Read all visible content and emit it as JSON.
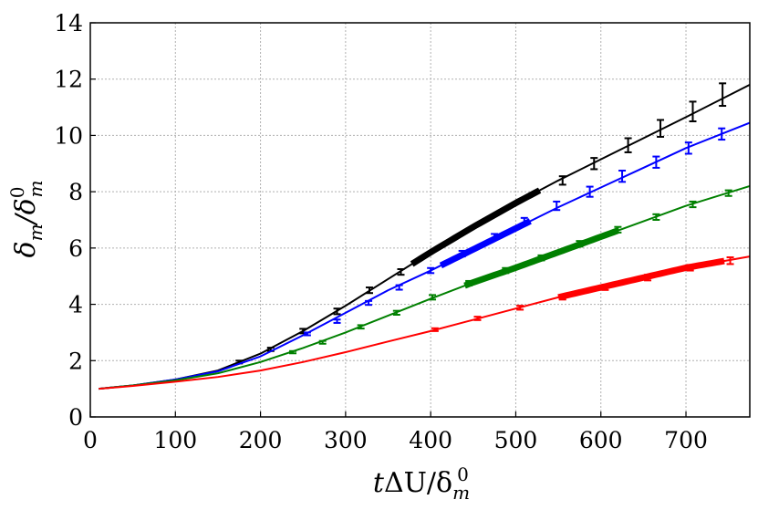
{
  "chart_data": {
    "type": "line",
    "title": "",
    "xlabel_parts": {
      "t": "t",
      "delta": "ΔU/δ",
      "sub": "m",
      "sup": "0"
    },
    "ylabel_parts": {
      "num": "δ",
      "num_sub": "m",
      "slash": "/δ",
      "den_sup": "0",
      "den_sub": "m"
    },
    "xlim": [
      0,
      775
    ],
    "ylim": [
      0,
      14
    ],
    "xticks": [
      0,
      100,
      200,
      300,
      400,
      500,
      600,
      700
    ],
    "yticks": [
      0,
      2,
      4,
      6,
      8,
      10,
      12,
      14
    ],
    "grid": true,
    "legend": "none",
    "series": [
      {
        "color": "#000000",
        "x": [
          10,
          50,
          100,
          150,
          200,
          250,
          300,
          350,
          400,
          450,
          500,
          550,
          600,
          650,
          700,
          775
        ],
        "y": [
          1.0,
          1.12,
          1.33,
          1.65,
          2.25,
          3.05,
          3.95,
          4.9,
          5.85,
          6.75,
          7.6,
          8.4,
          9.15,
          9.9,
          10.65,
          11.8
        ],
        "errorbars": [
          {
            "x": 175,
            "y": 1.95,
            "err": 0.05
          },
          {
            "x": 212,
            "y": 2.4,
            "err": 0.06
          },
          {
            "x": 250,
            "y": 3.05,
            "err": 0.08
          },
          {
            "x": 290,
            "y": 3.75,
            "err": 0.1
          },
          {
            "x": 328,
            "y": 4.5,
            "err": 0.1
          },
          {
            "x": 365,
            "y": 5.15,
            "err": 0.1
          },
          {
            "x": 555,
            "y": 8.4,
            "err": 0.15
          },
          {
            "x": 592,
            "y": 9.0,
            "err": 0.2
          },
          {
            "x": 632,
            "y": 9.65,
            "err": 0.25
          },
          {
            "x": 670,
            "y": 10.25,
            "err": 0.3
          },
          {
            "x": 708,
            "y": 10.85,
            "err": 0.35
          },
          {
            "x": 743,
            "y": 11.45,
            "err": 0.4
          }
        ],
        "bold_x": [
          378,
          530
        ]
      },
      {
        "color": "#0000ff",
        "x": [
          10,
          50,
          100,
          150,
          200,
          250,
          300,
          350,
          400,
          450,
          500,
          550,
          600,
          650,
          700,
          775
        ],
        "y": [
          1.0,
          1.12,
          1.33,
          1.62,
          2.15,
          2.9,
          3.7,
          4.5,
          5.2,
          5.95,
          6.7,
          7.45,
          8.15,
          8.85,
          9.55,
          10.45
        ],
        "errorbars": [
          {
            "x": 255,
            "y": 2.95,
            "err": 0.05
          },
          {
            "x": 290,
            "y": 3.4,
            "err": 0.06
          },
          {
            "x": 327,
            "y": 4.05,
            "err": 0.07
          },
          {
            "x": 363,
            "y": 4.6,
            "err": 0.08
          },
          {
            "x": 400,
            "y": 5.2,
            "err": 0.09
          },
          {
            "x": 437,
            "y": 5.8,
            "err": 0.1
          },
          {
            "x": 475,
            "y": 6.4,
            "err": 0.1
          },
          {
            "x": 510,
            "y": 6.95,
            "err": 0.12
          },
          {
            "x": 548,
            "y": 7.5,
            "err": 0.15
          },
          {
            "x": 587,
            "y": 8.0,
            "err": 0.18
          },
          {
            "x": 625,
            "y": 8.55,
            "err": 0.2
          },
          {
            "x": 665,
            "y": 9.05,
            "err": 0.2
          },
          {
            "x": 703,
            "y": 9.55,
            "err": 0.2
          },
          {
            "x": 742,
            "y": 10.05,
            "err": 0.2
          }
        ],
        "bold_x": [
          412,
          520
        ]
      },
      {
        "color": "#008000",
        "x": [
          10,
          50,
          100,
          150,
          200,
          250,
          300,
          350,
          400,
          450,
          500,
          550,
          600,
          650,
          700,
          775
        ],
        "y": [
          1.0,
          1.12,
          1.3,
          1.55,
          1.95,
          2.45,
          3.0,
          3.6,
          4.2,
          4.78,
          5.3,
          5.85,
          6.4,
          6.95,
          7.5,
          8.2
        ],
        "errorbars": [
          {
            "x": 238,
            "y": 2.3,
            "err": 0.04
          },
          {
            "x": 273,
            "y": 2.65,
            "err": 0.05
          },
          {
            "x": 318,
            "y": 3.2,
            "err": 0.06
          },
          {
            "x": 360,
            "y": 3.7,
            "err": 0.07
          },
          {
            "x": 402,
            "y": 4.25,
            "err": 0.08
          },
          {
            "x": 445,
            "y": 4.75,
            "err": 0.08
          },
          {
            "x": 488,
            "y": 5.2,
            "err": 0.09
          },
          {
            "x": 530,
            "y": 5.65,
            "err": 0.09
          },
          {
            "x": 575,
            "y": 6.15,
            "err": 0.1
          },
          {
            "x": 620,
            "y": 6.65,
            "err": 0.1
          },
          {
            "x": 665,
            "y": 7.1,
            "err": 0.1
          },
          {
            "x": 708,
            "y": 7.55,
            "err": 0.1
          },
          {
            "x": 750,
            "y": 7.95,
            "err": 0.1
          }
        ],
        "bold_x": [
          440,
          620
        ]
      },
      {
        "color": "#ff0000",
        "x": [
          10,
          50,
          100,
          150,
          200,
          250,
          300,
          350,
          400,
          450,
          500,
          550,
          600,
          650,
          700,
          775
        ],
        "y": [
          1.0,
          1.1,
          1.25,
          1.42,
          1.65,
          1.95,
          2.3,
          2.68,
          3.05,
          3.45,
          3.85,
          4.25,
          4.6,
          4.95,
          5.3,
          5.7
        ],
        "errorbars": [
          {
            "x": 405,
            "y": 3.1,
            "err": 0.05
          },
          {
            "x": 455,
            "y": 3.5,
            "err": 0.06
          },
          {
            "x": 505,
            "y": 3.88,
            "err": 0.07
          },
          {
            "x": 555,
            "y": 4.25,
            "err": 0.08
          },
          {
            "x": 605,
            "y": 4.6,
            "err": 0.09
          },
          {
            "x": 655,
            "y": 4.95,
            "err": 0.1
          },
          {
            "x": 705,
            "y": 5.3,
            "err": 0.1
          },
          {
            "x": 752,
            "y": 5.55,
            "err": 0.12
          }
        ],
        "bold_x": [
          550,
          745
        ]
      }
    ]
  }
}
